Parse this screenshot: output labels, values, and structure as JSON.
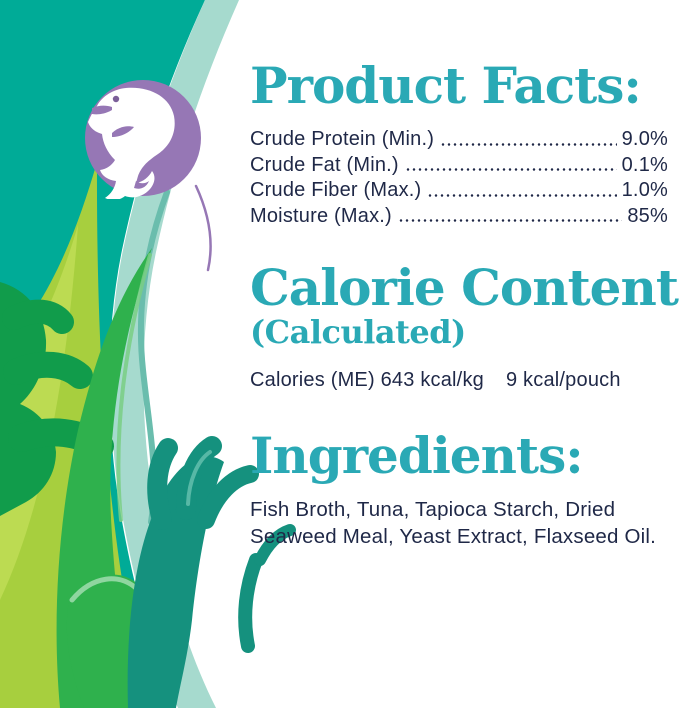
{
  "badge": {
    "icon": "fish-icon",
    "circle_color": "#9677B5"
  },
  "colors": {
    "heading_teal": "#2AA9B5",
    "text_navy": "#1F2847",
    "teal_field": "#00AB97",
    "seafoam_band": "#A6DACE",
    "purple": "#9677B5",
    "lime_green": "#A7CF3E",
    "bright_green": "#2FB14D",
    "dark_green": "#119C4B",
    "dark_teal_kelp": "#15917E"
  },
  "sections": {
    "product_facts": {
      "heading": "Product Facts:",
      "rows": [
        {
          "label": "Crude Protein (Min.)",
          "value": "9.0%"
        },
        {
          "label": "Crude Fat (Min.)",
          "value": "0.1%"
        },
        {
          "label": "Crude Fiber (Max.)",
          "value": "1.0%"
        },
        {
          "label": "Moisture (Max.)",
          "value": "85%"
        }
      ]
    },
    "calorie_content": {
      "heading": "Calorie Content:",
      "subheading": "(Calculated)",
      "line_prefix": "Calories (ME) 643 kcal/kg",
      "line_suffix": "9 kcal/pouch"
    },
    "ingredients": {
      "heading": "Ingredients:",
      "text": "Fish Broth, Tuna, Tapioca Starch, Dried Seaweed Meal, Yeast Extract, Flaxseed Oil."
    }
  }
}
